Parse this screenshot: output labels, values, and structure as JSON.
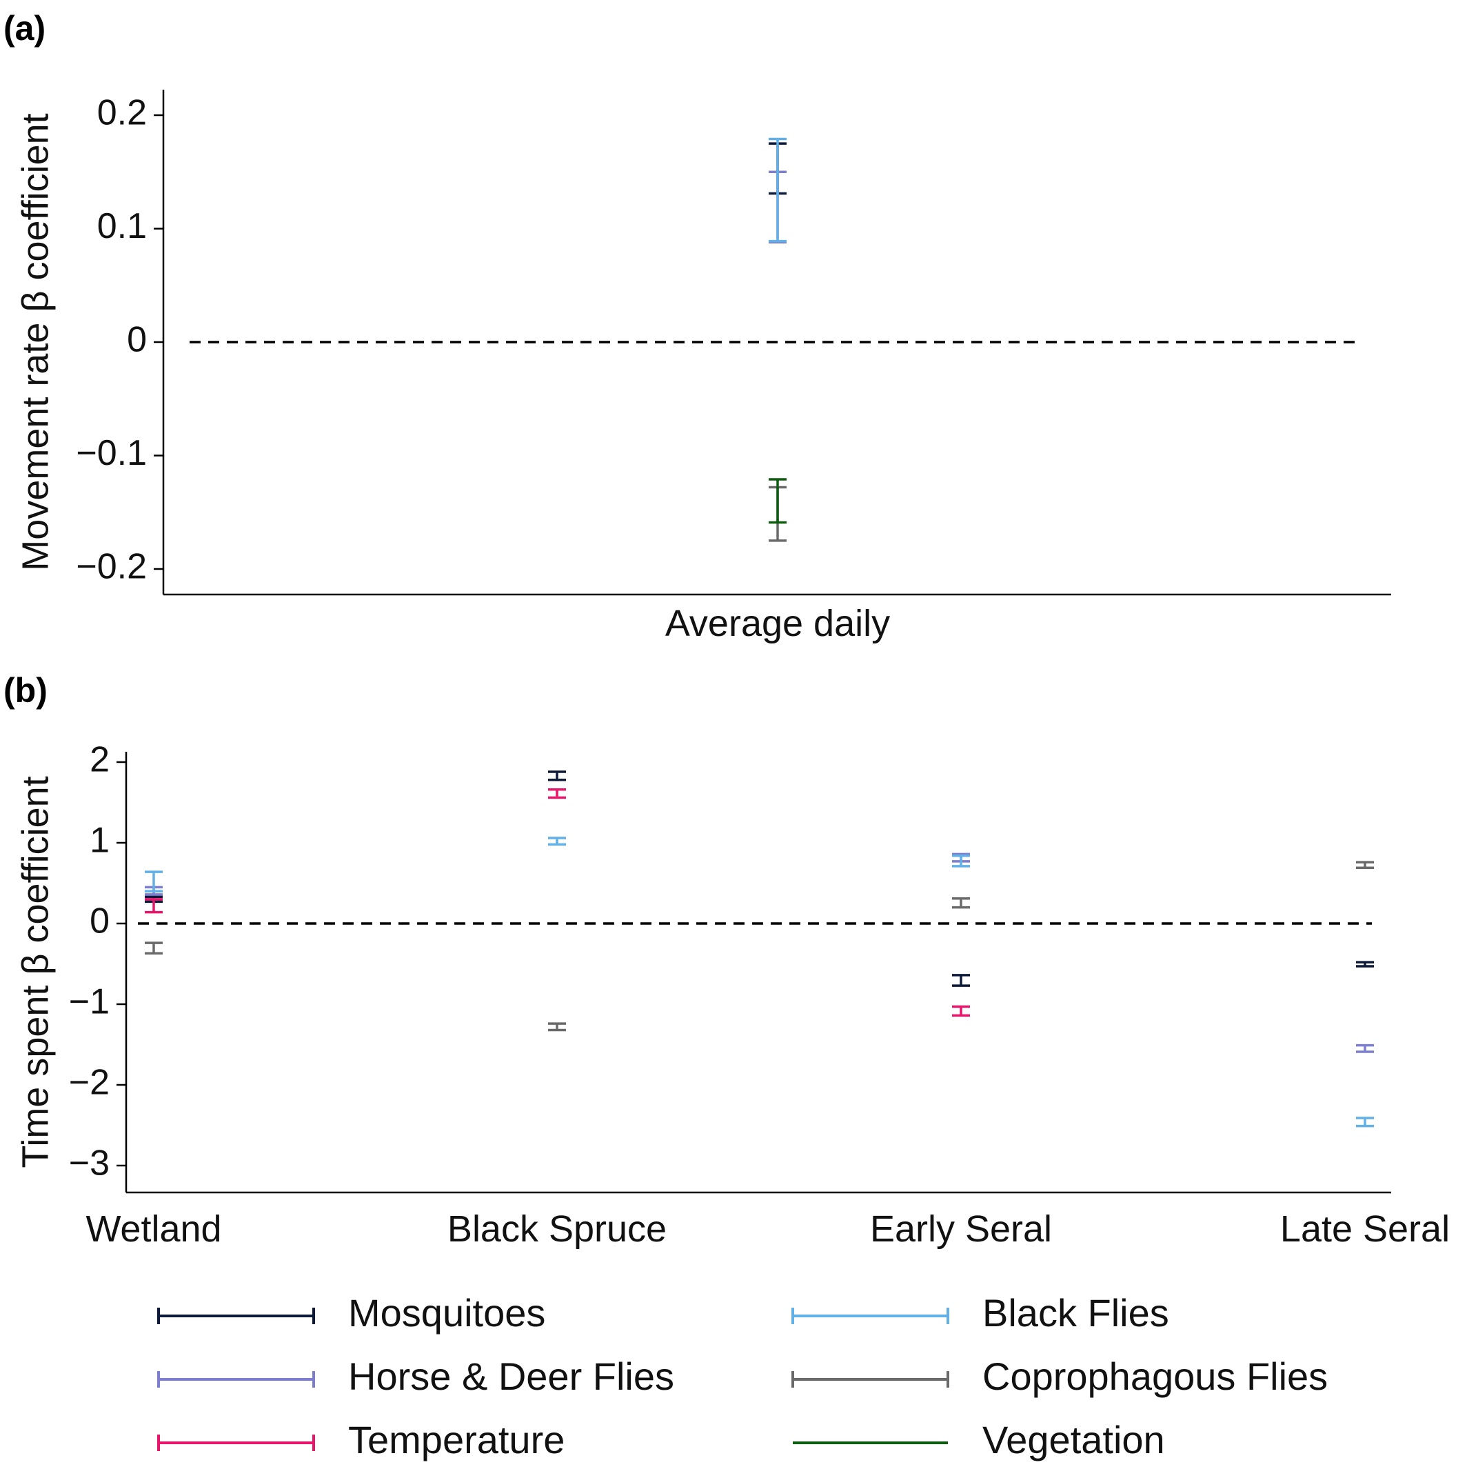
{
  "chart_data": [
    {
      "panel_label": "(a)",
      "type": "errorbar",
      "ylabel": "Movement rate β coefficient",
      "categories": [
        "Average daily"
      ],
      "ylim": [
        -0.22,
        0.22
      ],
      "yticks": [
        0.2,
        0.1,
        0,
        -0.1,
        -0.2
      ],
      "ytick_labels": [
        "0.2",
        "0.1",
        "0",
        "−0.1",
        "−0.2"
      ],
      "reference_line": 0,
      "series": [
        {
          "name": "Mosquitoes",
          "values": [
            [
              0.131,
              0.175
            ]
          ]
        },
        {
          "name": "Horse & Deer Flies",
          "values": [
            [
              0.088,
              0.15
            ]
          ]
        },
        {
          "name": "Black Flies",
          "values": [
            [
              0.089,
              0.179
            ]
          ]
        },
        {
          "name": "Coprophagous Flies",
          "values": [
            [
              -0.175,
              -0.128
            ]
          ]
        },
        {
          "name": "Vegetation",
          "values": [
            [
              -0.159,
              -0.121
            ]
          ]
        }
      ]
    },
    {
      "panel_label": "(b)",
      "type": "errorbar",
      "ylabel": "Time spent β coefficient",
      "categories": [
        "Wetland",
        "Black Spruce",
        "Early Seral",
        "Late Seral"
      ],
      "ylim": [
        -3.3,
        2.3
      ],
      "yticks": [
        2,
        1,
        0,
        -1,
        -2,
        -3
      ],
      "ytick_labels": [
        "2",
        "1",
        "0",
        "−1",
        "−2",
        "−3"
      ],
      "reference_line": 0,
      "series": [
        {
          "name": "Mosquitoes",
          "values": [
            [
              0.27,
              0.33
            ],
            [
              1.78,
              1.88
            ],
            [
              -0.77,
              -0.64
            ],
            [
              -0.53,
              -0.48
            ]
          ]
        },
        {
          "name": "Horse & Deer Flies",
          "values": [
            [
              0.36,
              0.45
            ],
            null,
            [
              0.77,
              0.86
            ],
            [
              -1.59,
              -1.51
            ]
          ]
        },
        {
          "name": "Temperature",
          "values": [
            [
              0.14,
              0.3
            ],
            [
              1.56,
              1.66
            ],
            [
              -1.14,
              -1.03
            ],
            null
          ]
        },
        {
          "name": "Black Flies",
          "values": [
            [
              0.4,
              0.64
            ],
            [
              0.98,
              1.06
            ],
            [
              0.71,
              0.84
            ],
            [
              -2.51,
              -2.41
            ]
          ]
        },
        {
          "name": "Coprophagous Flies",
          "values": [
            [
              -0.37,
              -0.24
            ],
            [
              -1.32,
              -1.24
            ],
            [
              0.2,
              0.31
            ],
            [
              0.69,
              0.76
            ]
          ]
        }
      ]
    }
  ],
  "legend": {
    "items": [
      {
        "label": "Mosquitoes",
        "color": "#0d1a3a"
      },
      {
        "label": "Black Flies",
        "color": "#62b0e6"
      },
      {
        "label": "Horse & Deer Flies",
        "color": "#7d7ed0"
      },
      {
        "label": "Coprophagous Flies",
        "color": "#6a6a6a"
      },
      {
        "label": "Temperature",
        "color": "#e8166a"
      },
      {
        "label": "Vegetation",
        "color": "#0e5c10"
      }
    ]
  }
}
